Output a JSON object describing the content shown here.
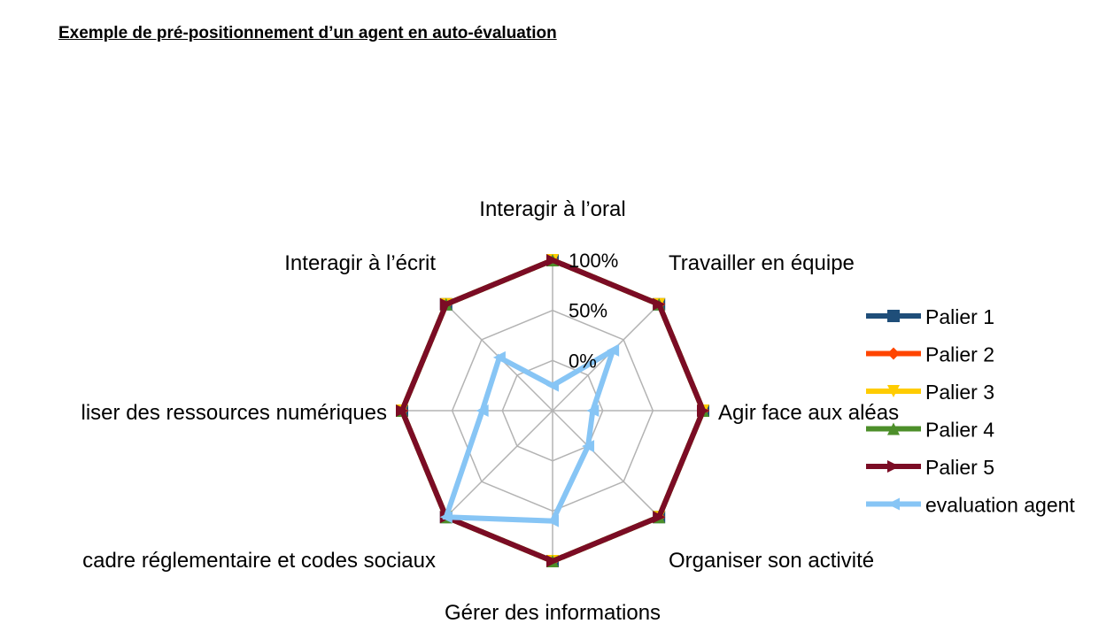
{
  "page": {
    "title": "Exemple de pré-positionnement d’un agent en auto-évaluation"
  },
  "chart_data": {
    "type": "radar",
    "title": "",
    "categories": [
      "Interagir à l’oral",
      "Travailler en équipe",
      "Agir face aux aléas",
      "Organiser son activité",
      "Gérer des informations",
      "cadre réglementaire et codes sociaux",
      "liser des ressources numériques",
      "Interagir à l’écrit"
    ],
    "ticks": [
      {
        "value": 0,
        "label": "0%"
      },
      {
        "value": 50,
        "label": "50%"
      },
      {
        "value": 100,
        "label": "100%"
      }
    ],
    "rlim": [
      -50,
      100
    ],
    "grid": true,
    "legend_position": "right",
    "series": [
      {
        "name": "Palier 1",
        "color": "#1f4e79",
        "marker": "square",
        "values": [
          100,
          100,
          100,
          100,
          100,
          100,
          100,
          100
        ]
      },
      {
        "name": "Palier 2",
        "color": "#ff4500",
        "marker": "diamond",
        "values": [
          100,
          100,
          100,
          100,
          100,
          100,
          100,
          100
        ]
      },
      {
        "name": "Palier 3",
        "color": "#ffcc00",
        "marker": "triangle-down",
        "values": [
          100,
          100,
          100,
          100,
          100,
          100,
          100,
          100
        ]
      },
      {
        "name": "Palier 4",
        "color": "#4d8f2a",
        "marker": "triangle-up",
        "values": [
          100,
          100,
          100,
          100,
          100,
          100,
          100,
          100
        ]
      },
      {
        "name": "Palier 5",
        "color": "#7b0c25",
        "marker": "triangle-right",
        "values": [
          100,
          100,
          100,
          100,
          100,
          100,
          100,
          100
        ]
      },
      {
        "name": "evaluation agent",
        "color": "#87c5f5",
        "marker": "triangle-left",
        "values": [
          -25,
          35,
          -10,
          0,
          60,
          100,
          20,
          25
        ]
      }
    ]
  }
}
